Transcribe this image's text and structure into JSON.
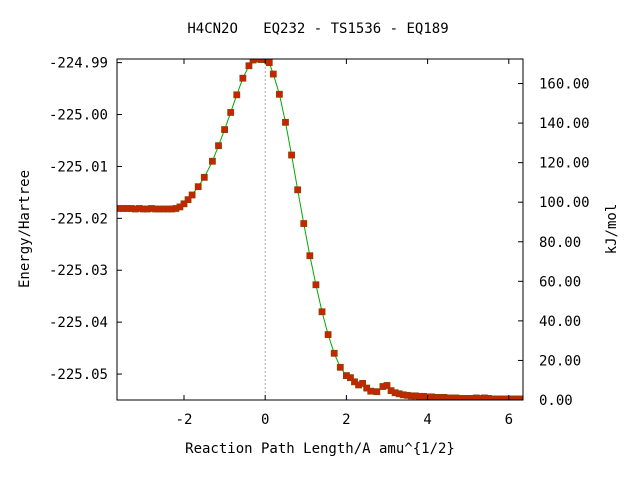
{
  "chart_data": {
    "type": "line",
    "title": "H4CN2O   EQ232 - TS1536 - EQ189",
    "xlabel": "Reaction Path Length/A amu^{1/2}",
    "ylabel": "Energy/Hartree",
    "y2label": "kJ/mol",
    "xlim": [
      -3.65,
      6.35
    ],
    "ylim": [
      -225.055,
      -224.9893
    ],
    "y2lim": [
      0.0,
      172.4
    ],
    "x_ticks": [
      -2,
      0,
      2,
      4,
      6
    ],
    "x_tick_labels": [
      "-2",
      "0",
      "2",
      "4",
      "6"
    ],
    "y_ticks": [
      -224.99,
      -225.0,
      -225.01,
      -225.02,
      -225.03,
      -225.04,
      -225.05
    ],
    "y_tick_labels": [
      "-224.99",
      "-225.00",
      "-225.01",
      "-225.02",
      "-225.03",
      "-225.04",
      "-225.05"
    ],
    "y2_ticks": [
      0,
      20,
      40,
      60,
      80,
      100,
      120,
      140,
      160
    ],
    "y2_tick_labels": [
      "0.00",
      "20.00",
      "40.00",
      "60.00",
      "80.00",
      "100.00",
      "120.00",
      "140.00",
      "160.00"
    ],
    "ts_marker_x": 0.0,
    "grid": false,
    "legend": "none",
    "colors": {
      "line": "#00aa00",
      "marker_fill": "#cc2200",
      "marker_edge": "#884400",
      "ts_line": "#aaaaaa"
    },
    "series": [
      {
        "x": [
          -3.6,
          -3.5,
          -3.4,
          -3.3,
          -3.2,
          -3.1,
          -3.0,
          -2.9,
          -2.8,
          -2.7,
          -2.6,
          -2.5,
          -2.4,
          -2.3,
          -2.2,
          -2.1,
          -2.0,
          -1.9,
          -1.8,
          -1.65,
          -1.5,
          -1.3,
          -1.15,
          -1.0,
          -0.85,
          -0.7,
          -0.55,
          -0.4,
          -0.3,
          -0.2,
          -0.1,
          0.0,
          0.1,
          0.2,
          0.35,
          0.5,
          0.65,
          0.8,
          0.95,
          1.1,
          1.25,
          1.4,
          1.55,
          1.7,
          1.85,
          2.0,
          2.1,
          2.2,
          2.3,
          2.4,
          2.5,
          2.6,
          2.75,
          2.9,
          3.0,
          3.1,
          3.2,
          3.3,
          3.4,
          3.5,
          3.6,
          3.7,
          3.8,
          3.9,
          4.0,
          4.1,
          4.2,
          4.3,
          4.4,
          4.5,
          4.6,
          4.7,
          4.8,
          4.9,
          5.0,
          5.1,
          5.2,
          5.3,
          5.4,
          5.5,
          5.6,
          5.7,
          5.8,
          5.9,
          6.0,
          6.1,
          6.2,
          6.3
        ],
        "y": [
          -225.0181,
          -225.0181,
          -225.0181,
          -225.0181,
          -225.0182,
          -225.0181,
          -225.0182,
          -225.0182,
          -225.0181,
          -225.0182,
          -225.0182,
          -225.0182,
          -225.0182,
          -225.0182,
          -225.0181,
          -225.0178,
          -225.0172,
          -225.0164,
          -225.0155,
          -225.0139,
          -225.0121,
          -225.009,
          -225.006,
          -225.0029,
          -224.9996,
          -224.9962,
          -224.993,
          -224.9906,
          -224.9895,
          -224.9893,
          -224.9894,
          -224.9894,
          -224.99,
          -224.9922,
          -224.9961,
          -225.0015,
          -225.0078,
          -225.0145,
          -225.021,
          -225.0272,
          -225.0328,
          -225.038,
          -225.0424,
          -225.046,
          -225.0487,
          -225.0503,
          -225.0507,
          -225.0515,
          -225.0521,
          -225.0518,
          -225.0527,
          -225.0533,
          -225.0534,
          -225.0524,
          -225.0522,
          -225.0532,
          -225.0536,
          -225.0538,
          -225.054,
          -225.0541,
          -225.0542,
          -225.0542,
          -225.0543,
          -225.0543,
          -225.0544,
          -225.0544,
          -225.0545,
          -225.0545,
          -225.0545,
          -225.0546,
          -225.0546,
          -225.0546,
          -225.0547,
          -225.0547,
          -225.0547,
          -225.0547,
          -225.0546,
          -225.0547,
          -225.0546,
          -225.0547,
          -225.0548,
          -225.0548,
          -225.0548,
          -225.0548,
          -225.0548,
          -225.0548,
          -225.0548,
          -225.0548
        ]
      }
    ]
  }
}
